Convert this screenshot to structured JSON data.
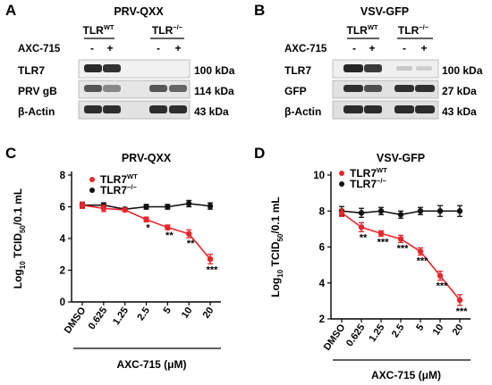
{
  "panels": {
    "A": {
      "letter": "A",
      "title": "PRV-QXX",
      "group_wt": "TLR",
      "group_wt_sup": "WT",
      "group_ko": "TLR",
      "group_ko_sup": "−/−",
      "treatment_label": "AXC-715",
      "treatment_marks": [
        "-",
        "+",
        "-",
        "+"
      ],
      "rows": [
        {
          "protein": "TLR7",
          "size": "100 kDa"
        },
        {
          "protein": "PRV gB",
          "size": "114 kDa"
        },
        {
          "protein": "β-Actin",
          "size": "43 kDa"
        }
      ]
    },
    "B": {
      "letter": "B",
      "title": "VSV-GFP",
      "group_wt": "TLR",
      "group_wt_sup": "WT",
      "group_ko": "TLR",
      "group_ko_sup": "−/−",
      "treatment_label": "AXC-715",
      "treatment_marks": [
        "-",
        "+",
        "-",
        "+"
      ],
      "rows": [
        {
          "protein": "TLR7",
          "size": "100 kDa"
        },
        {
          "protein": "GFP",
          "size": "27 kDa"
        },
        {
          "protein": "β-Actin",
          "size": "43 kDa"
        }
      ]
    },
    "C": {
      "letter": "C"
    },
    "D": {
      "letter": "D"
    }
  },
  "chart_data": [
    {
      "type": "line",
      "title": "PRV-QXX",
      "xlabel": "AXC-715 (μM)",
      "ylabel_main": "Log",
      "ylabel_sub": "10",
      "ylabel_mid": " TCID",
      "ylabel_sub2": "50",
      "ylabel_end": "/0.1 mL",
      "categories": [
        "DMSO",
        "0.625",
        "1.25",
        "2.5",
        "5",
        "10",
        "20"
      ],
      "ylim": [
        0,
        8
      ],
      "yticks": [
        "0",
        "2",
        "4",
        "6",
        "8"
      ],
      "series": [
        {
          "name": "TLR7",
          "name_sup": "WT",
          "color": "#e8262b",
          "values": [
            6.1,
            5.9,
            5.8,
            5.2,
            4.7,
            4.3,
            2.7
          ],
          "errors": [
            0.2,
            0.2,
            0.1,
            0.15,
            0.15,
            0.25,
            0.3
          ]
        },
        {
          "name": "TLR7",
          "name_sup": "−/−",
          "color": "#111111",
          "values": [
            6.1,
            6.1,
            5.85,
            6.0,
            6.0,
            6.2,
            6.05
          ],
          "errors": [
            0.15,
            0.15,
            0.1,
            0.15,
            0.15,
            0.2,
            0.2
          ]
        }
      ],
      "significance": [
        "",
        "",
        "",
        "*",
        "**",
        "**",
        "***"
      ]
    },
    {
      "type": "line",
      "title": "VSV-GFP",
      "xlabel": "AXC-715 (μM)",
      "ylabel_main": "Log",
      "ylabel_sub": "10",
      "ylabel_mid": " TCID",
      "ylabel_sub2": "50",
      "ylabel_end": "/0.1 mL",
      "categories": [
        "DMSO",
        "0.625",
        "1.25",
        "2.5",
        "5",
        "10",
        "20"
      ],
      "ylim": [
        2,
        10
      ],
      "yticks": [
        "2",
        "4",
        "6",
        "8",
        "10"
      ],
      "series": [
        {
          "name": "TLR7",
          "name_sup": "WT",
          "color": "#e8262b",
          "values": [
            7.9,
            7.1,
            6.75,
            6.45,
            5.75,
            4.4,
            3.05
          ],
          "errors": [
            0.2,
            0.25,
            0.15,
            0.2,
            0.2,
            0.25,
            0.3
          ]
        },
        {
          "name": "TLR7",
          "name_sup": "−/−",
          "color": "#111111",
          "values": [
            8.0,
            7.9,
            8.0,
            7.8,
            8.0,
            8.0,
            8.0
          ],
          "errors": [
            0.25,
            0.25,
            0.2,
            0.2,
            0.2,
            0.3,
            0.3
          ]
        }
      ],
      "significance": [
        "",
        "**",
        "***",
        "***",
        "***",
        "***",
        "***"
      ]
    }
  ]
}
